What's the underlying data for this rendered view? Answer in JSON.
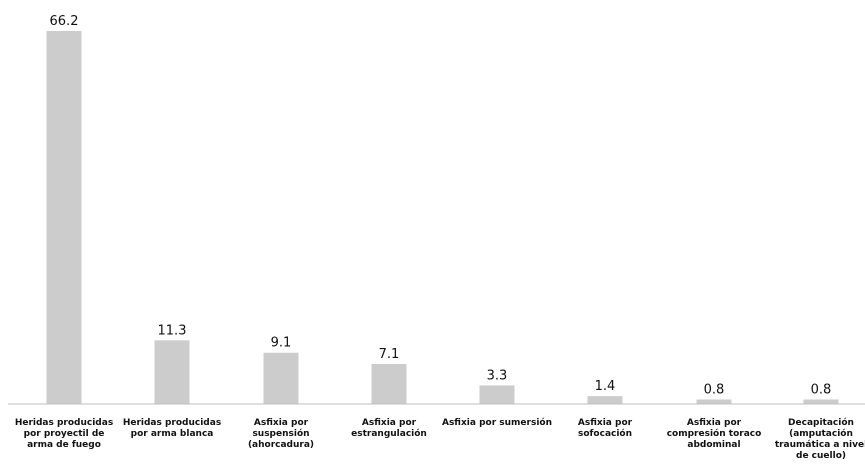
{
  "chart_data": {
    "type": "bar",
    "categories": [
      "Heridas producidas por proyectil de arma de fuego",
      "Heridas producidas por arma blanca",
      "Asfixia por suspensión (ahorcadura)",
      "Asfixia por estrangulación",
      "Asfixia por sumersión",
      "Asfixia por sofocación",
      "Asfixia por compresión toraco abdominal",
      "Decapitación (amputación traumática a nivel de cuello)"
    ],
    "category_lines": [
      [
        "Heridas producidas",
        "por proyectil de",
        "arma de fuego"
      ],
      [
        "Heridas producidas",
        "por arma blanca"
      ],
      [
        "Asfixia por",
        "suspensión",
        "(ahorcadura)"
      ],
      [
        "Asfixia por",
        "estrangulación"
      ],
      [
        "Asfixia por sumersión"
      ],
      [
        "Asfixia por",
        "sofocación"
      ],
      [
        "Asfixia por",
        "compresión toraco",
        "abdominal"
      ],
      [
        "Decapitación",
        "(amputación",
        "traumática a nivel",
        "de cuello)"
      ]
    ],
    "values": [
      66.2,
      11.3,
      9.1,
      7.1,
      3.3,
      1.4,
      0.8,
      0.8
    ],
    "value_labels": [
      "66.2",
      "11.3",
      "9.1",
      "7.1",
      "3.3",
      "1.4",
      "0.8",
      "0.8"
    ],
    "title": "",
    "xlabel": "",
    "ylabel": "",
    "ylim": [
      0,
      66.2
    ],
    "grid": false,
    "legend": "none",
    "colors": {
      "bar": "#cccccc",
      "axis": "#bfbfbf",
      "text": "#111111"
    }
  }
}
